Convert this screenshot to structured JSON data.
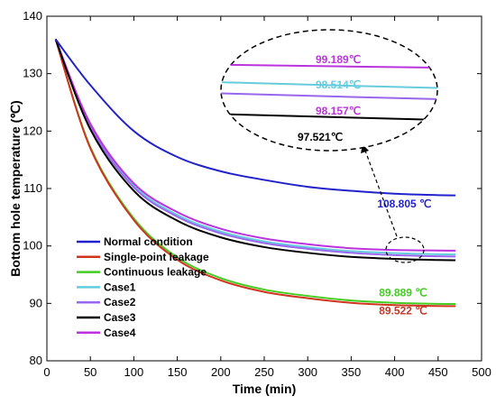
{
  "chart_data": {
    "type": "line",
    "xlabel": "Time (min)",
    "ylabel": "Bottom hole temperature (℃)",
    "xlim": [
      0,
      500
    ],
    "ylim": [
      80,
      140
    ],
    "xticks": [
      0,
      50,
      100,
      150,
      200,
      250,
      300,
      350,
      400,
      450,
      500
    ],
    "yticks": [
      80,
      90,
      100,
      110,
      120,
      130,
      140
    ],
    "legend_position": "bottom-left",
    "series": [
      {
        "name": "Normal condition",
        "color": "#2222cc",
        "x": [
          10,
          50,
          100,
          150,
          200,
          250,
          300,
          350,
          400,
          450,
          470
        ],
        "y": [
          136,
          128,
          120,
          115.5,
          113,
          111.5,
          110.3,
          109.6,
          109.1,
          108.85,
          108.805
        ]
      },
      {
        "name": "Single-point leakage",
        "color": "#d0341f",
        "x": [
          10,
          50,
          100,
          150,
          200,
          250,
          300,
          350,
          400,
          450,
          470
        ],
        "y": [
          136,
          117,
          104.5,
          97.6,
          94,
          92,
          90.9,
          90.1,
          89.7,
          89.55,
          89.522
        ]
      },
      {
        "name": "Continuous leakage",
        "color": "#44cc22",
        "x": [
          10,
          50,
          100,
          150,
          200,
          250,
          300,
          350,
          400,
          450,
          470
        ],
        "y": [
          136,
          117.2,
          104.8,
          98,
          94.4,
          92.4,
          91.3,
          90.5,
          90.1,
          89.92,
          89.889
        ]
      },
      {
        "name": "Case1",
        "color": "#66ccdd",
        "x": [
          10,
          50,
          100,
          150,
          200,
          250,
          300,
          350,
          400,
          450,
          470
        ],
        "y": [
          136,
          121,
          110.5,
          105.4,
          102.5,
          100.8,
          99.8,
          99.1,
          98.75,
          98.55,
          98.514
        ]
      },
      {
        "name": "Case2",
        "color": "#9966ee",
        "x": [
          10,
          50,
          100,
          150,
          200,
          250,
          300,
          350,
          400,
          450,
          470
        ],
        "y": [
          136,
          120.8,
          110.2,
          105.1,
          102.2,
          100.5,
          99.5,
          98.8,
          98.4,
          98.2,
          98.157
        ]
      },
      {
        "name": "Case3",
        "color": "#000000",
        "x": [
          10,
          50,
          100,
          150,
          200,
          250,
          300,
          350,
          400,
          450,
          470
        ],
        "y": [
          136,
          120.3,
          109.6,
          104.4,
          101.5,
          99.8,
          98.8,
          98.1,
          97.75,
          97.55,
          97.521
        ]
      },
      {
        "name": "Case4",
        "color": "#bb33dd",
        "x": [
          10,
          50,
          100,
          150,
          200,
          250,
          300,
          350,
          400,
          450,
          470
        ],
        "y": [
          136,
          121.3,
          110.9,
          105.9,
          103,
          101.3,
          100.3,
          99.6,
          99.3,
          99.2,
          99.189
        ]
      }
    ],
    "annotations": [
      {
        "text": "108.805 ℃",
        "color": "#2222cc",
        "x": 380,
        "y": 106.7
      },
      {
        "text": "89.889 ℃",
        "color": "#44cc22",
        "x": 382,
        "y": 91.2
      },
      {
        "text": "89.522 ℃",
        "color": "#c0392b",
        "x": 382,
        "y": 88.1
      }
    ],
    "inset": {
      "labels": [
        {
          "text": "99.189℃",
          "color": "#bb33dd"
        },
        {
          "text": "98.514℃",
          "color": "#66ccdd"
        },
        {
          "text": "98.157℃",
          "color": "#bb33dd"
        },
        {
          "text": "97.521℃",
          "color": "#000000"
        }
      ],
      "zoom_x": [
        400,
        445
      ],
      "zoom_y": [
        96.6,
        100.4
      ]
    }
  }
}
